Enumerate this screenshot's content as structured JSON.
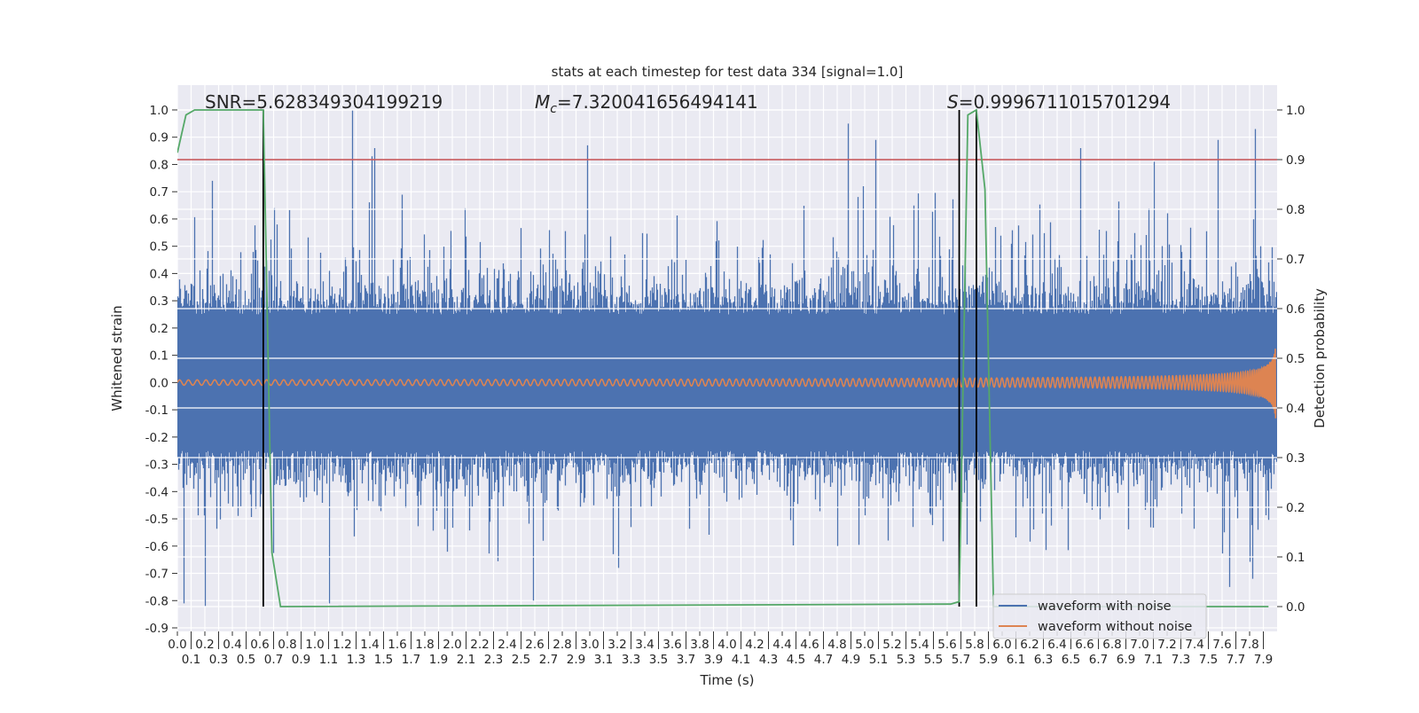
{
  "chart_data": {
    "type": "line",
    "title": "stats at each timestep for test data 334 [signal=1.0]",
    "xlabel": "Time (s)",
    "ylabel": "Whitened strain",
    "ylabel_right": "Detection probability",
    "xlim": [
      0,
      8.0
    ],
    "ylim": [
      -0.913,
      1.091
    ],
    "ylim_right": [
      -0.05,
      1.05
    ],
    "grid": true,
    "legend_position": "lower-right",
    "x_ticks": [
      "0.0",
      "0.1",
      "0.2",
      "0.3",
      "0.4",
      "0.5",
      "0.6",
      "0.7",
      "0.8",
      "0.9",
      "1.0",
      "1.1",
      "1.2",
      "1.3",
      "1.4",
      "1.5",
      "1.6",
      "1.7",
      "1.8",
      "1.9",
      "2.0",
      "2.1",
      "2.2",
      "2.3",
      "2.4",
      "2.5",
      "2.6",
      "2.7",
      "2.8",
      "2.9",
      "3.0",
      "3.1",
      "3.2",
      "3.3",
      "3.4",
      "3.5",
      "3.6",
      "3.7",
      "3.8",
      "3.9",
      "4.0",
      "4.1",
      "4.2",
      "4.3",
      "4.4",
      "4.5",
      "4.6",
      "4.7",
      "4.8",
      "4.9",
      "5.0",
      "5.1",
      "5.2",
      "5.3",
      "5.4",
      "5.5",
      "5.6",
      "5.7",
      "5.8",
      "5.9",
      "6.0",
      "6.1",
      "6.2",
      "6.3",
      "6.4",
      "6.5",
      "6.6",
      "6.7",
      "6.8",
      "6.9",
      "7.0",
      "7.1",
      "7.2",
      "7.3",
      "7.4",
      "7.5",
      "7.6",
      "7.7",
      "7.8",
      "7.9"
    ],
    "y_ticks": [
      "-0.9",
      "-0.8",
      "-0.7",
      "-0.6",
      "-0.5",
      "-0.4",
      "-0.3",
      "-0.2",
      "-0.1",
      "0.0",
      "0.1",
      "0.2",
      "0.3",
      "0.4",
      "0.5",
      "0.6",
      "0.7",
      "0.8",
      "0.9",
      "1.0"
    ],
    "y_ticks_right": [
      "0.0",
      "0.1",
      "0.2",
      "0.3",
      "0.4",
      "0.5",
      "0.6",
      "0.7",
      "0.8",
      "0.9",
      "1.0"
    ],
    "annotations": {
      "snr": "SNR=5.628349304199219",
      "mc_symbol": "M",
      "mc_subscript": "c",
      "mc_value": "=7.320041656494141",
      "s_symbol": "S",
      "s_value": "=0.9996711015701294"
    },
    "series": [
      {
        "name": "waveform with noise",
        "color": "#4c72b0",
        "axis": "left",
        "noise_band": 0.25,
        "peaks": [
          [
            0.045,
            -0.81
          ],
          [
            0.2,
            -0.82
          ],
          [
            0.25,
            0.74
          ],
          [
            1.1,
            -0.81
          ],
          [
            1.27,
            1.0
          ],
          [
            1.41,
            0.83
          ],
          [
            1.43,
            0.86
          ],
          [
            2.59,
            -0.8
          ],
          [
            2.98,
            0.87
          ],
          [
            4.88,
            0.95
          ],
          [
            5.08,
            0.89
          ],
          [
            6.57,
            0.86
          ],
          [
            7.1,
            0.81
          ],
          [
            7.57,
            0.89
          ],
          [
            7.65,
            -0.75
          ],
          [
            7.82,
            -0.72
          ],
          [
            7.84,
            0.93
          ]
        ]
      },
      {
        "name": "waveform without noise",
        "color": "#dd8452",
        "axis": "left",
        "chirp": {
          "start_frequency_hz": 16,
          "start_amplitude": 0.01,
          "end_amplitude": 0.14,
          "coalescence_time": 8.0
        }
      },
      {
        "name": "detection probability",
        "color": "#55a868",
        "axis": "right",
        "points": [
          [
            0.0,
            0.914
          ],
          [
            0.0625,
            0.99
          ],
          [
            0.125,
            1.0
          ],
          [
            0.625,
            1.0
          ],
          [
            0.6875,
            0.109
          ],
          [
            0.75,
            0.0
          ],
          [
            5.625,
            0.005
          ],
          [
            5.6875,
            0.01
          ],
          [
            5.75,
            0.99
          ],
          [
            5.8125,
            1.0
          ],
          [
            5.875,
            0.84
          ],
          [
            5.9375,
            0.0
          ],
          [
            7.9375,
            0.0
          ]
        ]
      },
      {
        "name": "threshold",
        "color": "#c44e52",
        "axis": "right",
        "value": 0.9
      },
      {
        "name": "detection markers",
        "color": "#000000",
        "axis": "right",
        "times": [
          0.625,
          5.6875,
          5.8125
        ]
      }
    ],
    "legend": [
      "waveform with noise",
      "waveform without noise"
    ]
  }
}
